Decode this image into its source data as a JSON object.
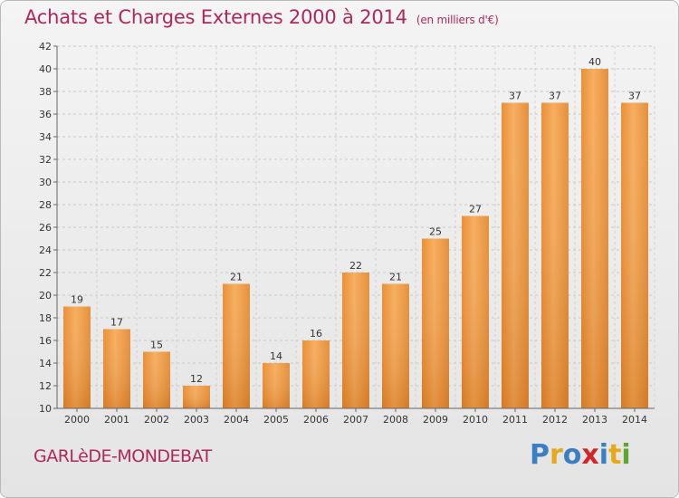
{
  "title": "Achats et Charges Externes 2000 à 2014",
  "unit": "(en milliers d'€)",
  "commune": "GARLèDE-MONDEBAT",
  "logo": {
    "text": "Proxiti",
    "letters": [
      {
        "ch": "P",
        "color": "#3a7fc2"
      },
      {
        "ch": "r",
        "color": "#e8a81c"
      },
      {
        "ch": "o",
        "color": "#3a7fc2"
      },
      {
        "ch": "x",
        "color": "#d2262b"
      },
      {
        "ch": "i",
        "color": "#3a7fc2"
      },
      {
        "ch": "t",
        "color": "#e8a81c"
      },
      {
        "ch": "i",
        "color": "#5aa832"
      }
    ]
  },
  "chart_data": {
    "type": "bar",
    "title": "Achats et Charges Externes 2000 à 2014",
    "subtitle": "(en milliers d'€)",
    "categories": [
      "2000",
      "2001",
      "2002",
      "2003",
      "2004",
      "2005",
      "2006",
      "2007",
      "2008",
      "2009",
      "2010",
      "2011",
      "2012",
      "2013",
      "2014"
    ],
    "values": [
      19,
      17,
      15,
      12,
      21,
      14,
      16,
      22,
      21,
      25,
      27,
      37,
      37,
      40,
      37
    ],
    "ylim": [
      10,
      42
    ],
    "yticks": [
      10,
      12,
      14,
      16,
      18,
      20,
      22,
      24,
      26,
      28,
      30,
      32,
      34,
      36,
      38,
      40,
      42
    ],
    "grid": true,
    "bar_color": "#f0a04a"
  }
}
